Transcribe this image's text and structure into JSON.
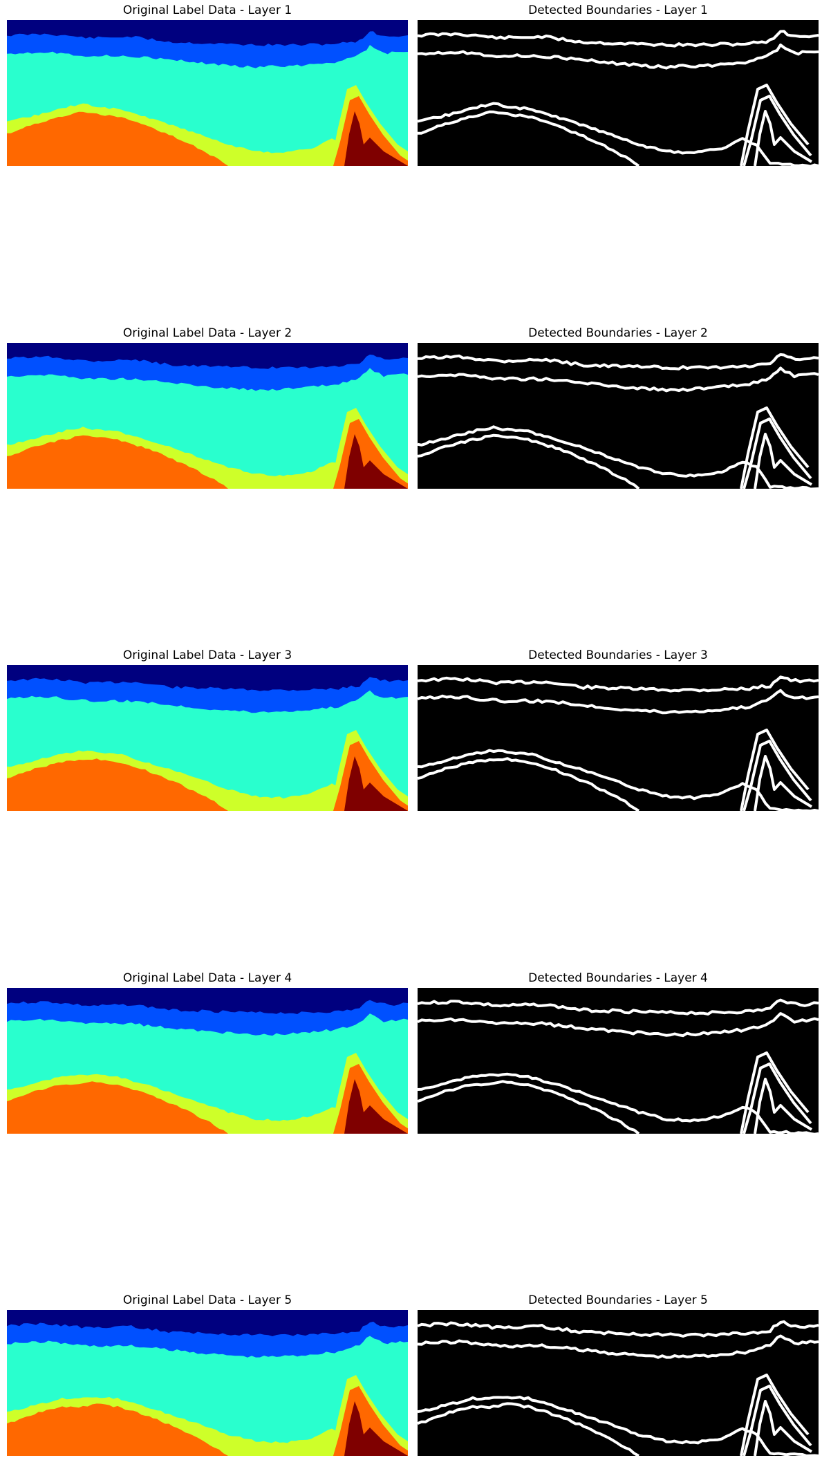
{
  "colors": {
    "background": "#ffffff",
    "boundary_background": "#000000",
    "boundary_line": "#ffffff",
    "layer_colors": [
      "#00007f",
      "#0050ff",
      "#29ffce",
      "#ceff29",
      "#ff6800",
      "#7f0000"
    ]
  },
  "rows": [
    {
      "label_title": "Original Label Data - Layer 1",
      "boundary_title": "Detected Boundaries - Layer 1"
    },
    {
      "label_title": "Original Label Data - Layer 2",
      "boundary_title": "Detected Boundaries - Layer 2"
    },
    {
      "label_title": "Original Label Data - Layer 3",
      "boundary_title": "Detected Boundaries - Layer 3"
    },
    {
      "label_title": "Original Label Data - Layer 4",
      "boundary_title": "Detected Boundaries - Layer 4"
    },
    {
      "label_title": "Original Label Data - Layer 5",
      "boundary_title": "Detected Boundaries - Layer 5"
    }
  ]
}
